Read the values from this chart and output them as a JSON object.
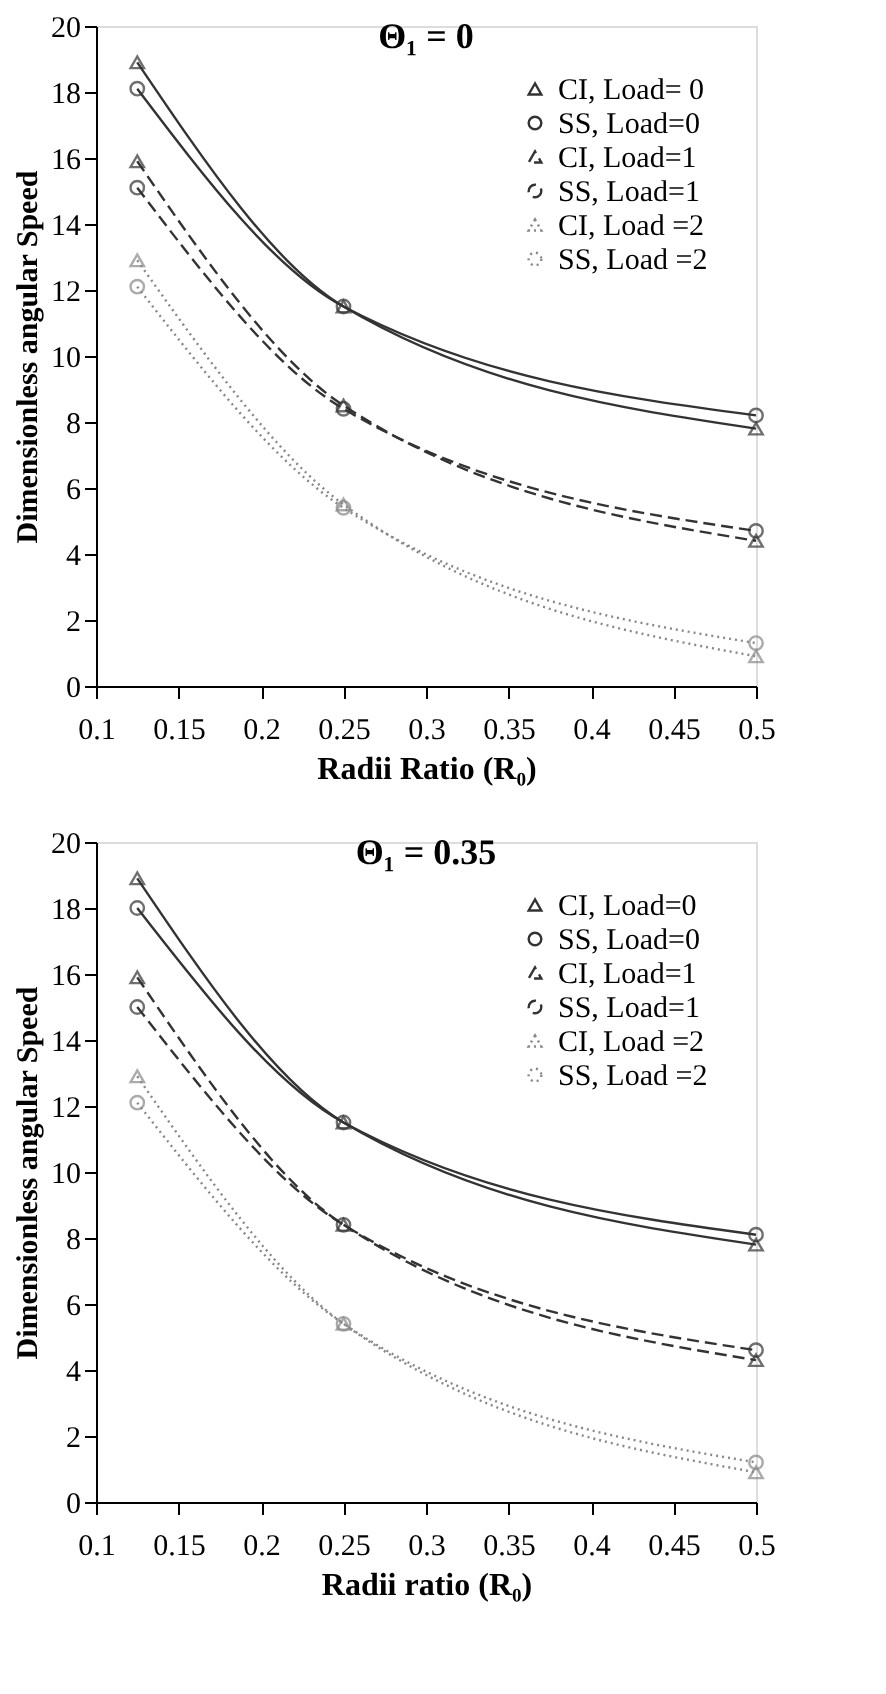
{
  "chart_data": [
    {
      "type": "line",
      "title": "Θ₁ = 0",
      "xlabel": "Radii Ratio (R₀)",
      "ylabel": "Dimensionless angular Speed",
      "x": [
        0.125,
        0.25,
        0.5
      ],
      "xlim": [
        0.1,
        0.5
      ],
      "xticks": [
        0.1,
        0.15,
        0.2,
        0.25,
        0.3,
        0.35,
        0.4,
        0.45,
        0.5
      ],
      "ylim": [
        0,
        20
      ],
      "yticks": [
        0,
        2,
        4,
        6,
        8,
        10,
        12,
        14,
        16,
        18,
        20
      ],
      "grid": false,
      "legend": "top right",
      "series": [
        {
          "name": "CI, Load= 0",
          "color": "#333333",
          "marker": "triangle",
          "line_style": "solid",
          "values": [
            18.9,
            11.5,
            7.8
          ]
        },
        {
          "name": "SS, Load=0",
          "color": "#333333",
          "marker": "circle",
          "line_style": "solid",
          "values": [
            18.1,
            11.5,
            8.2
          ]
        },
        {
          "name": "CI, Load=1",
          "color": "#333333",
          "marker": "triangle",
          "line_style": "dashed",
          "values": [
            15.9,
            8.5,
            4.4
          ]
        },
        {
          "name": "SS, Load=1",
          "color": "#333333",
          "marker": "circle",
          "line_style": "dashed",
          "values": [
            15.1,
            8.4,
            4.7
          ]
        },
        {
          "name": "CI, Load =2",
          "color": "#888888",
          "marker": "triangle",
          "line_style": "dotted",
          "values": [
            12.9,
            5.5,
            0.9
          ]
        },
        {
          "name": "SS, Load =2",
          "color": "#888888",
          "marker": "circle",
          "line_style": "dotted",
          "values": [
            12.1,
            5.4,
            1.3
          ]
        }
      ]
    },
    {
      "type": "line",
      "title": "Θ₁ = 0.35",
      "xlabel": "Radii ratio (R₀)",
      "ylabel": "Dimensionless angular Speed",
      "x": [
        0.125,
        0.25,
        0.5
      ],
      "xlim": [
        0.1,
        0.5
      ],
      "xticks": [
        0.1,
        0.15,
        0.2,
        0.25,
        0.3,
        0.35,
        0.4,
        0.45,
        0.5
      ],
      "ylim": [
        0,
        20
      ],
      "yticks": [
        0,
        2,
        4,
        6,
        8,
        10,
        12,
        14,
        16,
        18,
        20
      ],
      "grid": false,
      "legend": "top right",
      "series": [
        {
          "name": "CI, Load=0",
          "color": "#333333",
          "marker": "triangle",
          "line_style": "solid",
          "values": [
            18.9,
            11.5,
            7.8
          ]
        },
        {
          "name": "SS, Load=0",
          "color": "#333333",
          "marker": "circle",
          "line_style": "solid",
          "values": [
            18.0,
            11.5,
            8.1
          ]
        },
        {
          "name": "CI, Load=1",
          "color": "#333333",
          "marker": "triangle",
          "line_style": "dashed",
          "values": [
            15.9,
            8.4,
            4.3
          ]
        },
        {
          "name": "SS, Load=1",
          "color": "#333333",
          "marker": "circle",
          "line_style": "dashed",
          "values": [
            15.0,
            8.4,
            4.6
          ]
        },
        {
          "name": "CI, Load =2",
          "color": "#888888",
          "marker": "triangle",
          "line_style": "dotted",
          "values": [
            12.9,
            5.4,
            0.9
          ]
        },
        {
          "name": "SS, Load =2",
          "color": "#888888",
          "marker": "circle",
          "line_style": "dotted",
          "values": [
            12.1,
            5.4,
            1.2
          ]
        }
      ]
    }
  ]
}
